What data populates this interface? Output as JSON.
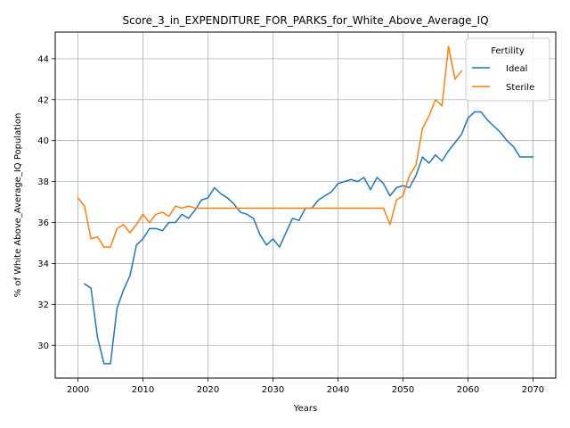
{
  "chart_data": {
    "type": "line",
    "title": "Score_3_in_EXPENDITURE_FOR_PARKS_for_White_Above_Average_IQ",
    "xlabel": "Years",
    "ylabel": "% of White Above_Average_IQ Population",
    "xlim": [
      1996.5,
      2073.5
    ],
    "ylim": [
      28.4,
      45.3
    ],
    "xticks": [
      2000,
      2010,
      2020,
      2030,
      2040,
      2050,
      2060,
      2070
    ],
    "yticks": [
      30,
      32,
      34,
      36,
      38,
      40,
      42,
      44
    ],
    "grid": true,
    "legend": {
      "title": "Fertility",
      "placement": "top-right"
    },
    "series": [
      {
        "name": "Ideal",
        "color": "#1f77b4",
        "x": [
          2001,
          2002,
          2003,
          2004,
          2005,
          2006,
          2007,
          2008,
          2009,
          2010,
          2011,
          2012,
          2013,
          2014,
          2015,
          2016,
          2017,
          2018,
          2019,
          2020,
          2021,
          2022,
          2023,
          2024,
          2025,
          2026,
          2027,
          2028,
          2029,
          2030,
          2031,
          2032,
          2033,
          2034,
          2035,
          2036,
          2037,
          2038,
          2039,
          2040,
          2041,
          2042,
          2043,
          2044,
          2045,
          2046,
          2047,
          2048,
          2049,
          2050,
          2051,
          2052,
          2053,
          2054,
          2055,
          2056,
          2057,
          2058,
          2059,
          2060,
          2061,
          2062,
          2063,
          2064,
          2065,
          2066,
          2067,
          2068,
          2069,
          2070
        ],
        "y": [
          33.0,
          32.8,
          30.4,
          29.1,
          29.1,
          31.8,
          32.7,
          33.4,
          34.9,
          35.2,
          35.7,
          35.7,
          35.6,
          36.0,
          36.0,
          36.4,
          36.2,
          36.6,
          37.1,
          37.2,
          37.7,
          37.4,
          37.2,
          36.9,
          36.5,
          36.4,
          36.2,
          35.4,
          34.9,
          35.2,
          34.8,
          35.5,
          36.2,
          36.1,
          36.7,
          36.7,
          37.1,
          37.3,
          37.5,
          37.9,
          38.0,
          38.1,
          38.0,
          38.2,
          37.6,
          38.2,
          37.9,
          37.3,
          37.7,
          37.8,
          37.7,
          38.3,
          39.2,
          38.9,
          39.3,
          39.0,
          39.5,
          39.9,
          40.3,
          41.1,
          41.4,
          41.4,
          41.0,
          40.7,
          40.4,
          40.0,
          39.7,
          39.2,
          39.2,
          39.2
        ]
      },
      {
        "name": "Sterile",
        "color": "#ff7f0e",
        "x": [
          2000,
          2001,
          2002,
          2003,
          2004,
          2005,
          2006,
          2007,
          2008,
          2009,
          2010,
          2011,
          2012,
          2013,
          2014,
          2015,
          2016,
          2017,
          2018,
          2019,
          2020,
          2021,
          2022,
          2023,
          2024,
          2025,
          2026,
          2027,
          2028,
          2029,
          2030,
          2031,
          2032,
          2033,
          2034,
          2035,
          2036,
          2037,
          2038,
          2039,
          2040,
          2041,
          2042,
          2043,
          2044,
          2045,
          2046,
          2047,
          2048,
          2049,
          2050,
          2051,
          2052,
          2053,
          2054,
          2055,
          2056,
          2057,
          2058,
          2059
        ],
        "y": [
          37.2,
          36.8,
          35.2,
          35.3,
          34.8,
          34.8,
          35.7,
          35.9,
          35.5,
          35.9,
          36.4,
          36.0,
          36.4,
          36.5,
          36.3,
          36.8,
          36.7,
          36.8,
          36.7,
          36.7,
          36.7,
          36.7,
          36.7,
          36.7,
          36.7,
          36.7,
          36.7,
          36.7,
          36.7,
          36.7,
          36.7,
          36.7,
          36.7,
          36.7,
          36.7,
          36.7,
          36.7,
          36.7,
          36.7,
          36.7,
          36.7,
          36.7,
          36.7,
          36.7,
          36.7,
          36.7,
          36.7,
          36.7,
          35.9,
          37.1,
          37.3,
          38.3,
          38.8,
          40.6,
          41.2,
          42.0,
          41.7,
          44.6,
          43.0,
          43.4
        ]
      }
    ]
  }
}
